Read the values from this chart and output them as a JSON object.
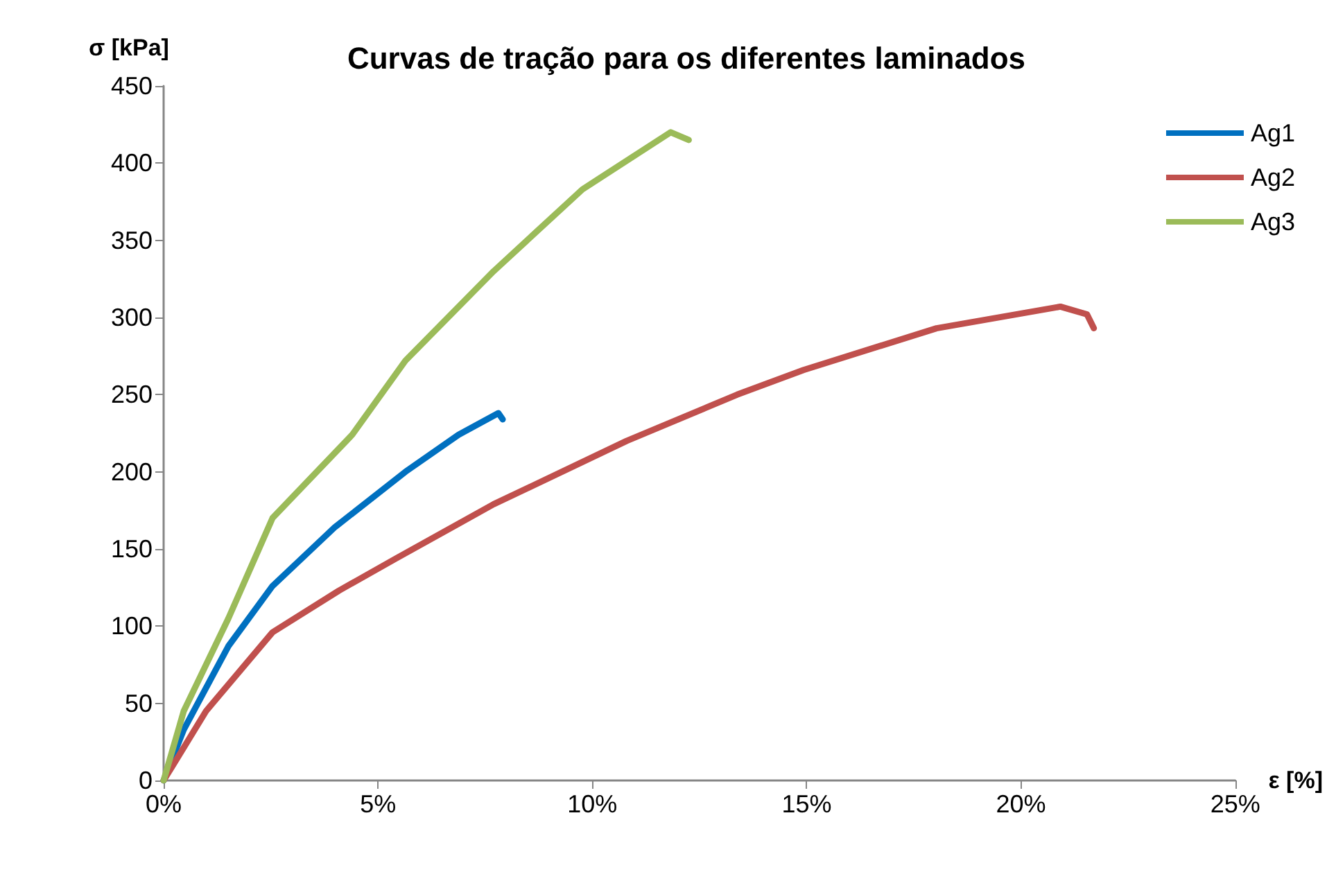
{
  "chart_data": {
    "type": "line",
    "title": "Curvas de tração para os diferentes laminados",
    "xlabel": "ε [%]",
    "ylabel": "σ [kPa]",
    "xlim": [
      0,
      25
    ],
    "xticks": [
      {
        "value": 0,
        "label": "0%"
      },
      {
        "value": 5,
        "label": "5%"
      },
      {
        "value": 10,
        "label": "10%"
      },
      {
        "value": 15,
        "label": "15%"
      },
      {
        "value": 20,
        "label": "20%"
      },
      {
        "value": 25,
        "label": "25%"
      }
    ],
    "ylim": [
      0,
      450
    ],
    "yticks": [
      0,
      50,
      100,
      150,
      200,
      250,
      300,
      350,
      400,
      450
    ],
    "grid": false,
    "legend": "top right",
    "marker": "none",
    "line_style": "solid",
    "series": [
      {
        "name": "Ag1",
        "color": "#0070c0",
        "x": [
          0,
          0.47,
          1.51,
          2.54,
          3.99,
          5.64,
          6.88,
          7.81,
          7.91
        ],
        "values": [
          0,
          33,
          87,
          126,
          164,
          200,
          224,
          238,
          234
        ]
      },
      {
        "name": "Ag2",
        "color": "#c0504d",
        "x": [
          0,
          0.99,
          2.54,
          4.09,
          5.43,
          7.7,
          10.8,
          13.38,
          14.93,
          18.03,
          20.92,
          21.54,
          21.7
        ],
        "values": [
          0,
          45,
          96,
          123,
          144,
          179,
          220,
          250,
          266,
          293,
          307,
          302,
          293
        ]
      },
      {
        "name": "Ag3",
        "color": "#9bbb59",
        "x": [
          0,
          0.47,
          1.51,
          2.54,
          4.4,
          5.64,
          7.7,
          9.77,
          11.83,
          12.25
        ],
        "values": [
          0,
          45,
          105,
          170,
          224,
          272,
          330,
          383,
          420,
          415
        ]
      }
    ]
  }
}
